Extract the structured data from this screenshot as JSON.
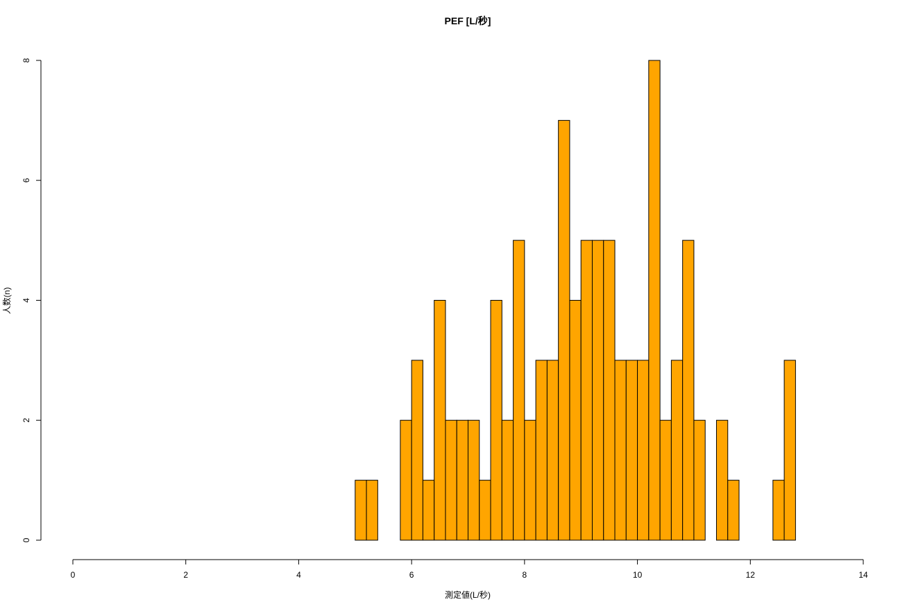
{
  "chart_data": {
    "type": "bar",
    "title": "PEF [L/秒]",
    "xlabel": "測定値(L/秒)",
    "ylabel": "人数(n)",
    "xlim": [
      0,
      14
    ],
    "ylim": [
      0,
      8
    ],
    "x_ticks": [
      "0",
      "2",
      "4",
      "6",
      "8",
      "10",
      "12",
      "14"
    ],
    "y_ticks": [
      "0",
      "2",
      "4",
      "6",
      "8"
    ],
    "bin_width": 0.2,
    "bin_start": 5.0,
    "values": [
      1,
      1,
      0,
      0,
      2,
      3,
      1,
      4,
      2,
      2,
      2,
      1,
      4,
      2,
      5,
      2,
      3,
      3,
      7,
      4,
      5,
      5,
      5,
      3,
      3,
      3,
      8,
      2,
      3,
      5,
      2,
      0,
      2,
      1,
      0,
      0,
      0,
      1,
      3
    ],
    "bar_color": "#FFA500",
    "grid": false,
    "legend": "none"
  }
}
